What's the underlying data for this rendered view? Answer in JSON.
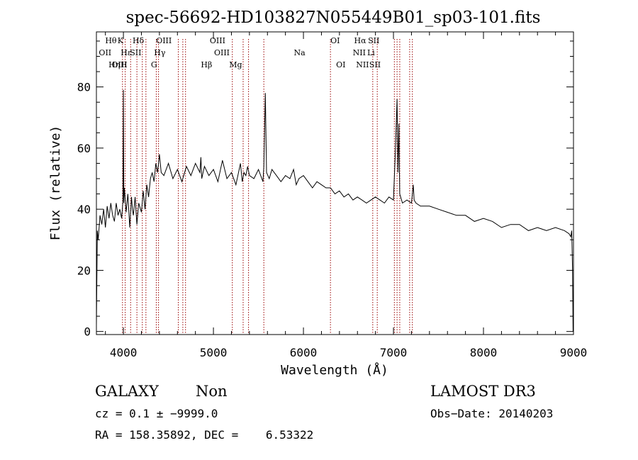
{
  "chart_data": {
    "type": "line",
    "title": "spec-56692-HD103827N055449B01_sp03-101.fits",
    "xlabel": "Wavelength (Å)",
    "ylabel": "Flux (relative)",
    "xlim": [
      3700,
      9000
    ],
    "ylim": [
      -1,
      98
    ],
    "x_ticks": [
      4000,
      5000,
      6000,
      7000,
      8000,
      9000
    ],
    "y_ticks": [
      0,
      20,
      40,
      60,
      80
    ],
    "grid": false,
    "line_color": "#000000",
    "marker_color": "#990000",
    "series": [
      {
        "x": [
          3700,
          3710,
          3720,
          3740,
          3760,
          3780,
          3800,
          3820,
          3840,
          3860,
          3880,
          3900,
          3920,
          3940,
          3960,
          3980,
          3995,
          4000,
          4005,
          4010,
          4030,
          4050,
          4070,
          4090,
          4100,
          4110,
          4130,
          4150,
          4170,
          4200,
          4220,
          4240,
          4260,
          4280,
          4300,
          4320,
          4340,
          4360,
          4380,
          4400,
          4420,
          4450,
          4500,
          4550,
          4600,
          4650,
          4700,
          4750,
          4800,
          4850,
          4861,
          4870,
          4900,
          4950,
          5000,
          5050,
          5100,
          5150,
          5200,
          5250,
          5300,
          5320,
          5340,
          5360,
          5380,
          5400,
          5450,
          5500,
          5550,
          5560,
          5577,
          5590,
          5620,
          5650,
          5700,
          5750,
          5800,
          5850,
          5890,
          5920,
          5950,
          6000,
          6050,
          6100,
          6150,
          6200,
          6250,
          6300,
          6350,
          6400,
          6450,
          6500,
          6550,
          6600,
          6650,
          6700,
          6750,
          6800,
          6850,
          6900,
          6950,
          7000,
          7020,
          7040,
          7050,
          7060,
          7070,
          7080,
          7100,
          7150,
          7200,
          7220,
          7230,
          7250,
          7300,
          7400,
          7500,
          7600,
          7700,
          7800,
          7900,
          8000,
          8100,
          8200,
          8300,
          8400,
          8500,
          8600,
          8700,
          8800,
          8900,
          8950,
          8970,
          8980,
          8990,
          8995
        ],
        "y": [
          2,
          33,
          30,
          38,
          35,
          40,
          34,
          41,
          37,
          42,
          38,
          36,
          42,
          38,
          40,
          37,
          43,
          79,
          42,
          47,
          39,
          45,
          34,
          44,
          40,
          38,
          44,
          35,
          42,
          39,
          46,
          40,
          48,
          44,
          50,
          52,
          49,
          55,
          52,
          58,
          52,
          51,
          55,
          50,
          53,
          49,
          54,
          51,
          55,
          52,
          57,
          50,
          54,
          51,
          53,
          49,
          56,
          50,
          52,
          48,
          55,
          49,
          52,
          51,
          54,
          51,
          50,
          53,
          49,
          54,
          78,
          52,
          50,
          53,
          51,
          49,
          51,
          50,
          53,
          48,
          50,
          51,
          49,
          47,
          49,
          48,
          47,
          47,
          45,
          46,
          44,
          45,
          43,
          44,
          43,
          42,
          43,
          44,
          43,
          42,
          44,
          43,
          58,
          76,
          52,
          68,
          45,
          44,
          42,
          43,
          42,
          48,
          43,
          42,
          41,
          41,
          40,
          39,
          38,
          38,
          36,
          37,
          36,
          34,
          35,
          35,
          33,
          34,
          33,
          34,
          33,
          32,
          31,
          33,
          20,
          0
        ]
      }
    ],
    "spectral_lines": [
      {
        "label": "OII",
        "x": 3727,
        "row": 2
      },
      {
        "label": "OIII",
        "x": 3869,
        "row": 3
      },
      {
        "label": "Hθ",
        "x": 3797,
        "row": 1
      },
      {
        "label": "K",
        "x": 3934,
        "row": 1
      },
      {
        "label": "Hε",
        "x": 3970,
        "row": 2
      },
      {
        "label": "Hη",
        "x": 3835,
        "row": 3
      },
      {
        "label": "H",
        "x": 3968,
        "row": 3
      },
      {
        "label": "Hδ",
        "x": 4102,
        "row": 1
      },
      {
        "label": "SII",
        "x": 4072,
        "row": 2
      },
      {
        "label": "OIII",
        "x": 4363,
        "row": 1
      },
      {
        "label": "Hγ",
        "x": 4340,
        "row": 2
      },
      {
        "label": "G",
        "x": 4305,
        "row": 3
      },
      {
        "label": "OIII",
        "x": 4959,
        "row": 1
      },
      {
        "label": "OIII",
        "x": 5007,
        "row": 2
      },
      {
        "label": "Hβ",
        "x": 4861,
        "row": 3
      },
      {
        "label": "Mg",
        "x": 5175,
        "row": 3
      },
      {
        "label": "Na",
        "x": 5893,
        "row": 2
      },
      {
        "label": "OI",
        "x": 6300,
        "row": 1
      },
      {
        "label": "OI",
        "x": 6363,
        "row": 3
      },
      {
        "label": "Hα",
        "x": 6563,
        "row": 1
      },
      {
        "label": "SII",
        "x": 6717,
        "row": 1
      },
      {
        "label": "NII",
        "x": 6548,
        "row": 2
      },
      {
        "label": "Li",
        "x": 6708,
        "row": 2
      },
      {
        "label": "NII",
        "x": 6584,
        "row": 3
      },
      {
        "label": "SII",
        "x": 6731,
        "row": 3
      }
    ],
    "marker_lines_x": [
      3990,
      4020,
      4080,
      4150,
      4210,
      4250,
      4365,
      4390,
      4610,
      4660,
      4690,
      5210,
      5330,
      5390,
      5560,
      6300,
      6770,
      6820,
      7010,
      7040,
      7070,
      7180,
      7210
    ]
  },
  "info": {
    "object_class": "GALAXY",
    "subclass": "Non",
    "cz_text": "cz = 0.1 ± −9999.0",
    "coords_text": "RA = 158.35892, DEC =    6.53322",
    "survey": "LAMOST DR3",
    "obs_date_text": "Obs−Date: 20140203"
  }
}
